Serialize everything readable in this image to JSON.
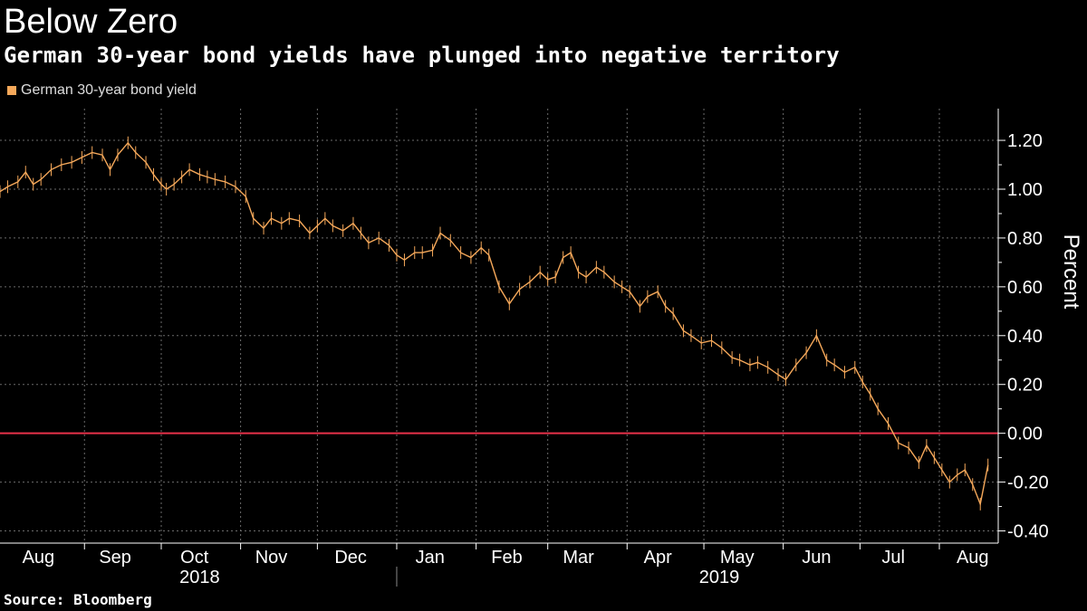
{
  "header": {
    "title": "Below Zero",
    "subtitle": "German 30-year bond yields have plunged into negative territory"
  },
  "footer": {
    "source": "Source: Bloomberg"
  },
  "colors": {
    "series": "#F5A85A",
    "zero_line": "#E8324A",
    "grid": "#6b6b6b",
    "axis": "#ffffff"
  },
  "chart_data": {
    "type": "line",
    "title": "Below Zero",
    "subtitle": "German 30-year bond yields have plunged into negative territory",
    "ylabel": "Percent",
    "ylim": [
      -0.45,
      1.33
    ],
    "xlim": [
      "2018-07-30",
      "2019-08-24"
    ],
    "grid": true,
    "legend": {
      "position": "top-left",
      "entries": [
        "German 30-year bond yield"
      ]
    },
    "y_ticks": [
      "1.20",
      "1.00",
      "0.80",
      "0.60",
      "0.40",
      "0.20",
      "0.00",
      "-0.20",
      "-0.40"
    ],
    "y_tick_values": [
      1.2,
      1.0,
      0.8,
      0.6,
      0.4,
      0.2,
      0.0,
      -0.2,
      -0.4
    ],
    "x_ticks": [
      "Aug",
      "Sep",
      "Oct",
      "Nov",
      "Dec",
      "Jan",
      "Feb",
      "Mar",
      "Apr",
      "May",
      "Jun",
      "Jul",
      "Aug"
    ],
    "x_tick_dates": [
      "2018-08-14",
      "2018-09-13",
      "2018-10-14",
      "2018-11-13",
      "2018-12-14",
      "2019-01-14",
      "2019-02-13",
      "2019-03-13",
      "2019-04-13",
      "2019-05-14",
      "2019-06-14",
      "2019-07-14",
      "2019-08-14"
    ],
    "x_gridlines": [
      "2018-09-01",
      "2018-10-01",
      "2018-11-01",
      "2018-12-01",
      "2019-01-01",
      "2019-02-01",
      "2019-03-01",
      "2019-04-01",
      "2019-05-01",
      "2019-06-01",
      "2019-07-01",
      "2019-08-01"
    ],
    "year_labels": [
      {
        "label": "2018",
        "date": "2018-10-16"
      },
      {
        "label": "2019",
        "date": "2019-05-07"
      }
    ],
    "year_divider": "2019-01-01",
    "reference_lines": [
      {
        "y": 0.0
      }
    ],
    "series": [
      {
        "name": "German 30-year bond yield",
        "x": [
          "2018-07-30",
          "2018-08-02",
          "2018-08-06",
          "2018-08-09",
          "2018-08-12",
          "2018-08-15",
          "2018-08-19",
          "2018-08-23",
          "2018-08-27",
          "2018-08-31",
          "2018-09-04",
          "2018-09-08",
          "2018-09-11",
          "2018-09-14",
          "2018-09-18",
          "2018-09-21",
          "2018-09-25",
          "2018-09-28",
          "2018-10-01",
          "2018-10-03",
          "2018-10-06",
          "2018-10-09",
          "2018-10-12",
          "2018-10-16",
          "2018-10-19",
          "2018-10-22",
          "2018-10-26",
          "2018-10-30",
          "2018-11-03",
          "2018-11-06",
          "2018-11-10",
          "2018-11-13",
          "2018-11-17",
          "2018-11-20",
          "2018-11-24",
          "2018-11-28",
          "2018-12-01",
          "2018-12-04",
          "2018-12-07",
          "2018-12-11",
          "2018-12-15",
          "2018-12-18",
          "2018-12-21",
          "2018-12-25",
          "2018-12-29",
          "2019-01-01",
          "2019-01-04",
          "2019-01-08",
          "2019-01-11",
          "2019-01-15",
          "2019-01-18",
          "2019-01-22",
          "2019-01-26",
          "2019-01-30",
          "2019-02-03",
          "2019-02-06",
          "2019-02-10",
          "2019-02-14",
          "2019-02-18",
          "2019-02-22",
          "2019-02-26",
          "2019-03-01",
          "2019-03-04",
          "2019-03-07",
          "2019-03-10",
          "2019-03-13",
          "2019-03-16",
          "2019-03-20",
          "2019-03-23",
          "2019-03-27",
          "2019-03-30",
          "2019-04-02",
          "2019-04-06",
          "2019-04-09",
          "2019-04-13",
          "2019-04-16",
          "2019-04-19",
          "2019-04-23",
          "2019-04-26",
          "2019-04-30",
          "2019-05-04",
          "2019-05-08",
          "2019-05-12",
          "2019-05-15",
          "2019-05-19",
          "2019-05-22",
          "2019-05-26",
          "2019-05-30",
          "2019-06-02",
          "2019-06-06",
          "2019-06-10",
          "2019-06-14",
          "2019-06-18",
          "2019-06-21",
          "2019-06-25",
          "2019-06-29",
          "2019-07-02",
          "2019-07-05",
          "2019-07-08",
          "2019-07-12",
          "2019-07-16",
          "2019-07-20",
          "2019-07-24",
          "2019-07-27",
          "2019-07-30",
          "2019-08-02",
          "2019-08-05",
          "2019-08-08",
          "2019-08-11",
          "2019-08-14",
          "2019-08-17",
          "2019-08-20"
        ],
        "values": [
          0.99,
          1.01,
          1.03,
          1.07,
          1.02,
          1.04,
          1.08,
          1.1,
          1.11,
          1.13,
          1.15,
          1.14,
          1.08,
          1.14,
          1.19,
          1.15,
          1.11,
          1.06,
          1.02,
          1.0,
          1.02,
          1.05,
          1.08,
          1.06,
          1.05,
          1.04,
          1.03,
          1.01,
          0.97,
          0.88,
          0.84,
          0.88,
          0.86,
          0.88,
          0.87,
          0.82,
          0.85,
          0.88,
          0.85,
          0.83,
          0.86,
          0.82,
          0.78,
          0.8,
          0.77,
          0.73,
          0.71,
          0.74,
          0.74,
          0.75,
          0.82,
          0.79,
          0.74,
          0.72,
          0.76,
          0.73,
          0.6,
          0.53,
          0.59,
          0.62,
          0.66,
          0.63,
          0.64,
          0.72,
          0.74,
          0.66,
          0.64,
          0.68,
          0.66,
          0.62,
          0.6,
          0.58,
          0.52,
          0.56,
          0.58,
          0.52,
          0.49,
          0.42,
          0.4,
          0.37,
          0.38,
          0.35,
          0.31,
          0.3,
          0.28,
          0.29,
          0.27,
          0.24,
          0.22,
          0.28,
          0.33,
          0.4,
          0.3,
          0.28,
          0.25,
          0.27,
          0.21,
          0.16,
          0.1,
          0.04,
          -0.04,
          -0.06,
          -0.12,
          -0.05,
          -0.1,
          -0.15,
          -0.2,
          -0.17,
          -0.15,
          -0.21,
          -0.29,
          -0.13
        ]
      }
    ]
  }
}
